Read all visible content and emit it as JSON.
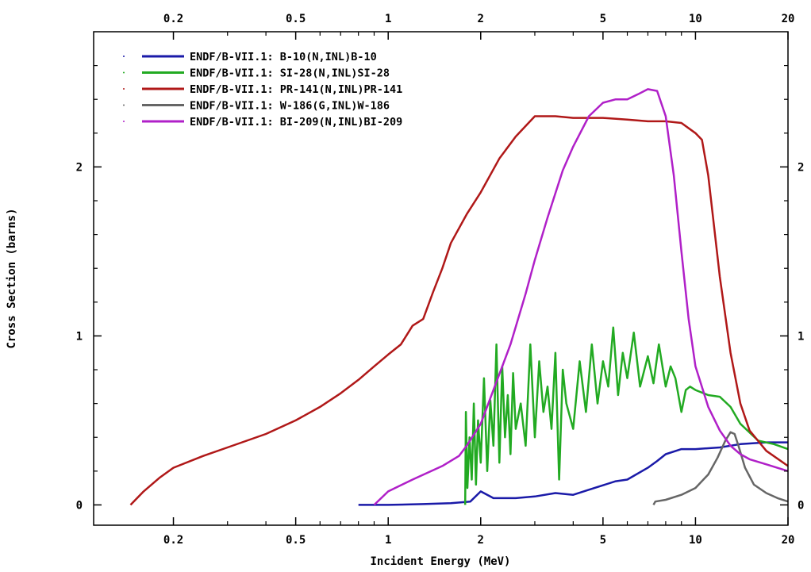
{
  "chart_data": {
    "type": "line",
    "xlabel": "Incident Energy (MeV)",
    "ylabel": "Cross Section (barns)",
    "xscale": "log",
    "xlim": [
      0.11,
      20
    ],
    "ylim": [
      -0.12,
      2.8
    ],
    "xticks": [
      0.2,
      0.5,
      1,
      2,
      5,
      10,
      20
    ],
    "xtick_labels": [
      "0.2",
      "0.5",
      "1",
      "2",
      "5",
      "10",
      "20"
    ],
    "yticks": [
      0,
      1,
      2
    ],
    "ytick_labels": [
      "0",
      "1",
      "2"
    ],
    "grid": false,
    "legend_position": "top-left",
    "series": [
      {
        "name": "ENDF/B-VII.1: B-10(N,INL)B-10",
        "color": "#1a1aa8",
        "x": [
          0.8,
          1.0,
          1.3,
          1.6,
          1.85,
          2.0,
          2.2,
          2.6,
          3.0,
          3.5,
          4.0,
          4.5,
          5.5,
          6.0,
          7.0,
          7.5,
          8.0,
          9.0,
          10.0,
          12.0,
          14.0,
          17.0,
          20.0
        ],
        "y": [
          0.0,
          0.0,
          0.005,
          0.01,
          0.02,
          0.08,
          0.04,
          0.04,
          0.05,
          0.07,
          0.06,
          0.09,
          0.14,
          0.15,
          0.22,
          0.26,
          0.3,
          0.33,
          0.33,
          0.34,
          0.36,
          0.37,
          0.37
        ]
      },
      {
        "name": "ENDF/B-VII.1: SI-28(N,INL)SI-28",
        "color": "#22aa22",
        "x": [
          1.78,
          1.79,
          1.81,
          1.84,
          1.87,
          1.9,
          1.93,
          1.96,
          2.0,
          2.05,
          2.1,
          2.15,
          2.2,
          2.25,
          2.3,
          2.35,
          2.4,
          2.45,
          2.5,
          2.55,
          2.6,
          2.7,
          2.8,
          2.9,
          3.0,
          3.1,
          3.2,
          3.3,
          3.4,
          3.5,
          3.6,
          3.7,
          3.8,
          4.0,
          4.2,
          4.4,
          4.6,
          4.8,
          5.0,
          5.2,
          5.4,
          5.6,
          5.8,
          6.0,
          6.3,
          6.6,
          7.0,
          7.3,
          7.6,
          8.0,
          8.3,
          8.6,
          9.0,
          9.3,
          9.6,
          10.0,
          11.0,
          12.0,
          13.0,
          14.0,
          16.0,
          18.0,
          20.0
        ],
        "y": [
          0.0,
          0.55,
          0.1,
          0.4,
          0.15,
          0.6,
          0.12,
          0.5,
          0.25,
          0.75,
          0.2,
          0.62,
          0.35,
          0.95,
          0.25,
          0.82,
          0.4,
          0.65,
          0.3,
          0.78,
          0.45,
          0.6,
          0.35,
          0.95,
          0.4,
          0.85,
          0.55,
          0.7,
          0.45,
          0.9,
          0.15,
          0.8,
          0.6,
          0.45,
          0.85,
          0.55,
          0.95,
          0.6,
          0.85,
          0.7,
          1.05,
          0.65,
          0.9,
          0.75,
          1.02,
          0.7,
          0.88,
          0.72,
          0.95,
          0.7,
          0.82,
          0.75,
          0.55,
          0.68,
          0.7,
          0.68,
          0.65,
          0.64,
          0.58,
          0.48,
          0.38,
          0.36,
          0.33
        ]
      },
      {
        "name": "ENDF/B-VII.1: PR-141(N,INL)PR-141",
        "color": "#b01818",
        "x": [
          0.145,
          0.16,
          0.18,
          0.2,
          0.25,
          0.3,
          0.4,
          0.5,
          0.6,
          0.7,
          0.8,
          0.9,
          1.0,
          1.1,
          1.2,
          1.3,
          1.4,
          1.5,
          1.6,
          1.8,
          2.0,
          2.3,
          2.6,
          3.0,
          3.5,
          4.0,
          5.0,
          6.0,
          7.0,
          8.0,
          9.0,
          10.0,
          10.5,
          11.0,
          12.0,
          13.0,
          14.0,
          15.0,
          17.0,
          20.0
        ],
        "y": [
          0.0,
          0.08,
          0.16,
          0.22,
          0.29,
          0.34,
          0.42,
          0.5,
          0.58,
          0.66,
          0.74,
          0.82,
          0.89,
          0.95,
          1.06,
          1.1,
          1.26,
          1.4,
          1.55,
          1.72,
          1.85,
          2.05,
          2.18,
          2.3,
          2.3,
          2.29,
          2.29,
          2.28,
          2.27,
          2.27,
          2.26,
          2.2,
          2.16,
          1.95,
          1.35,
          0.9,
          0.6,
          0.44,
          0.32,
          0.23
        ]
      },
      {
        "name": "ENDF/B-VII.1: W-186(G,INL)W-186",
        "color": "#666666",
        "x": [
          7.3,
          7.4,
          8.0,
          9.0,
          10.0,
          11.0,
          11.8,
          12.5,
          13.0,
          13.4,
          13.8,
          14.5,
          15.5,
          17.0,
          18.5,
          20.0
        ],
        "y": [
          0.0,
          0.02,
          0.03,
          0.06,
          0.1,
          0.18,
          0.28,
          0.38,
          0.43,
          0.42,
          0.35,
          0.22,
          0.12,
          0.07,
          0.04,
          0.02
        ]
      },
      {
        "name": "ENDF/B-VII.1: BI-209(N,INL)BI-209",
        "color": "#b020c8",
        "x": [
          0.9,
          1.0,
          1.2,
          1.5,
          1.7,
          1.8,
          2.0,
          2.2,
          2.5,
          2.8,
          3.0,
          3.3,
          3.7,
          4.0,
          4.5,
          5.0,
          5.5,
          6.0,
          6.5,
          7.0,
          7.5,
          8.0,
          8.5,
          9.0,
          9.5,
          10.0,
          11.0,
          12.0,
          13.0,
          14.0,
          15.0,
          17.0,
          20.0
        ],
        "y": [
          0.0,
          0.08,
          0.15,
          0.23,
          0.29,
          0.35,
          0.48,
          0.68,
          0.95,
          1.25,
          1.45,
          1.7,
          1.98,
          2.12,
          2.3,
          2.38,
          2.4,
          2.4,
          2.43,
          2.46,
          2.45,
          2.3,
          1.95,
          1.5,
          1.1,
          0.82,
          0.58,
          0.44,
          0.35,
          0.3,
          0.27,
          0.24,
          0.2
        ]
      }
    ]
  }
}
